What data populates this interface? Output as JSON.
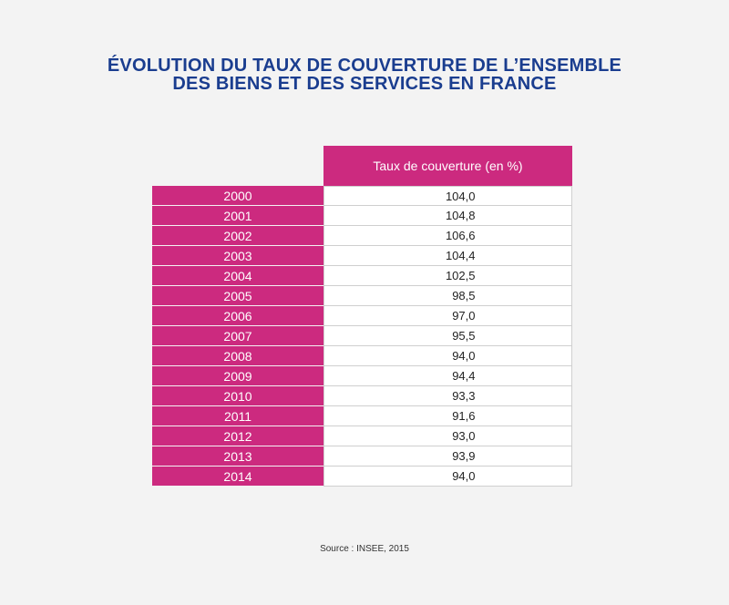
{
  "title": {
    "line1": "ÉVOLUTION DU TAUX DE COUVERTURE DE L’ENSEMBLE",
    "line2": "DES BIENS ET DES SERVICES EN FRANCE"
  },
  "source": "Source : INSEE, 2015",
  "colors": {
    "title": "#1a3d8f",
    "accent": "#cc2a7f",
    "background": "#f3f3f3"
  },
  "chart_data": {
    "type": "table",
    "title": "ÉVOLUTION DU TAUX DE COUVERTURE DE L’ENSEMBLE DES BIENS ET DES SERVICES EN FRANCE",
    "column_header": "Taux de couverture (en %)",
    "rows": [
      {
        "year": "2000",
        "value": "104,0"
      },
      {
        "year": "2001",
        "value": "104,8"
      },
      {
        "year": "2002",
        "value": "106,6"
      },
      {
        "year": "2003",
        "value": "104,4"
      },
      {
        "year": "2004",
        "value": "102,5"
      },
      {
        "year": "2005",
        "value": "98,5"
      },
      {
        "year": "2006",
        "value": "97,0"
      },
      {
        "year": "2007",
        "value": "95,5"
      },
      {
        "year": "2008",
        "value": "94,0"
      },
      {
        "year": "2009",
        "value": "94,4"
      },
      {
        "year": "2010",
        "value": "93,3"
      },
      {
        "year": "2011",
        "value": "91,6"
      },
      {
        "year": "2012",
        "value": "93,0"
      },
      {
        "year": "2013",
        "value": "93,9"
      },
      {
        "year": "2014",
        "value": "94,0"
      }
    ]
  }
}
